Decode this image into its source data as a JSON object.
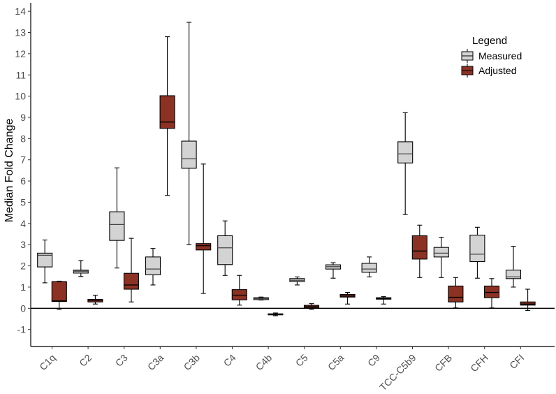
{
  "chart_data": {
    "type": "boxplot",
    "title": "",
    "xlabel": "",
    "ylabel": "Median Fold Change",
    "ylim": [
      -1.8,
      14.4
    ],
    "yticks": [
      -1,
      0,
      1,
      2,
      3,
      4,
      5,
      6,
      7,
      8,
      9,
      10,
      11,
      12,
      13,
      14
    ],
    "reference_line_y": 0,
    "grid": false,
    "legend": {
      "title": "Legend",
      "position": "top-right"
    },
    "categories": [
      "C1q",
      "C2",
      "C3",
      "C3a",
      "C3b",
      "C4",
      "C4b",
      "C5",
      "C5a",
      "C9",
      "TCC-C5b9",
      "CFB",
      "CFH",
      "CFI"
    ],
    "series": [
      {
        "name": "Measured",
        "color": "#d3d3d3",
        "boxes": [
          {
            "category": "C1q",
            "min": 1.2,
            "q1": 1.95,
            "median": 2.5,
            "q3": 2.6,
            "max": 3.22
          },
          {
            "category": "C2",
            "min": 1.5,
            "q1": 1.66,
            "median": 1.75,
            "q3": 1.8,
            "max": 2.25
          },
          {
            "category": "C3",
            "min": 1.9,
            "q1": 3.2,
            "median": 3.95,
            "q3": 4.55,
            "max": 6.62
          },
          {
            "category": "C3a",
            "min": 1.1,
            "q1": 1.58,
            "median": 1.85,
            "q3": 2.42,
            "max": 2.82
          },
          {
            "category": "C3b",
            "min": 3.0,
            "q1": 6.6,
            "median": 7.05,
            "q3": 7.88,
            "max": 13.48
          },
          {
            "category": "C4",
            "min": 1.55,
            "q1": 2.06,
            "median": 2.85,
            "q3": 3.42,
            "max": 4.12
          },
          {
            "category": "C4b",
            "min": 0.39,
            "q1": 0.41,
            "median": 0.46,
            "q3": 0.5,
            "max": 0.53
          },
          {
            "category": "C5",
            "min": 1.1,
            "q1": 1.26,
            "median": 1.32,
            "q3": 1.4,
            "max": 1.48
          },
          {
            "category": "C5a",
            "min": 1.42,
            "q1": 1.85,
            "median": 1.96,
            "q3": 2.05,
            "max": 2.15
          },
          {
            "category": "C9",
            "min": 1.48,
            "q1": 1.7,
            "median": 1.85,
            "q3": 2.12,
            "max": 2.42
          },
          {
            "category": "TCC-C5b9",
            "min": 4.42,
            "q1": 6.85,
            "median": 7.28,
            "q3": 7.85,
            "max": 9.22
          },
          {
            "category": "CFB",
            "min": 1.45,
            "q1": 2.42,
            "median": 2.6,
            "q3": 2.87,
            "max": 3.35
          },
          {
            "category": "CFH",
            "min": 1.42,
            "q1": 2.2,
            "median": 2.55,
            "q3": 3.45,
            "max": 3.82
          },
          {
            "category": "CFI",
            "min": 1.0,
            "q1": 1.4,
            "median": 1.48,
            "q3": 1.8,
            "max": 2.92
          }
        ]
      },
      {
        "name": "Adjusted",
        "color": "#8b3225",
        "boxes": [
          {
            "category": "C1q",
            "min": -0.05,
            "q1": 0.32,
            "median": 0.35,
            "q3": 1.26,
            "max": 1.28
          },
          {
            "category": "C2",
            "min": 0.2,
            "q1": 0.3,
            "median": 0.38,
            "q3": 0.42,
            "max": 0.62
          },
          {
            "category": "C3",
            "min": 0.3,
            "q1": 0.9,
            "median": 1.1,
            "q3": 1.65,
            "max": 3.3
          },
          {
            "category": "C3a",
            "min": 5.32,
            "q1": 8.48,
            "median": 8.78,
            "q3": 10.02,
            "max": 12.8
          },
          {
            "category": "C3b",
            "min": 0.7,
            "q1": 2.75,
            "median": 2.95,
            "q3": 3.05,
            "max": 6.8
          },
          {
            "category": "C4",
            "min": 0.15,
            "q1": 0.4,
            "median": 0.62,
            "q3": 0.88,
            "max": 1.55
          },
          {
            "category": "C4b",
            "min": -0.35,
            "q1": -0.3,
            "median": -0.28,
            "q3": -0.26,
            "max": -0.22
          },
          {
            "category": "C5",
            "min": -0.05,
            "q1": 0.02,
            "median": 0.08,
            "q3": 0.14,
            "max": 0.22
          },
          {
            "category": "C5a",
            "min": 0.2,
            "q1": 0.53,
            "median": 0.58,
            "q3": 0.65,
            "max": 0.75
          },
          {
            "category": "C9",
            "min": 0.2,
            "q1": 0.43,
            "median": 0.46,
            "q3": 0.5,
            "max": 0.55
          },
          {
            "category": "TCC-C5b9",
            "min": 1.45,
            "q1": 2.32,
            "median": 2.7,
            "q3": 3.42,
            "max": 3.92
          },
          {
            "category": "CFB",
            "min": 0.02,
            "q1": 0.3,
            "median": 0.52,
            "q3": 1.05,
            "max": 1.45
          },
          {
            "category": "CFH",
            "min": 0.02,
            "q1": 0.5,
            "median": 0.75,
            "q3": 1.05,
            "max": 1.4
          },
          {
            "category": "CFI",
            "min": -0.1,
            "q1": 0.15,
            "median": 0.2,
            "q3": 0.3,
            "max": 0.9
          }
        ]
      }
    ]
  }
}
